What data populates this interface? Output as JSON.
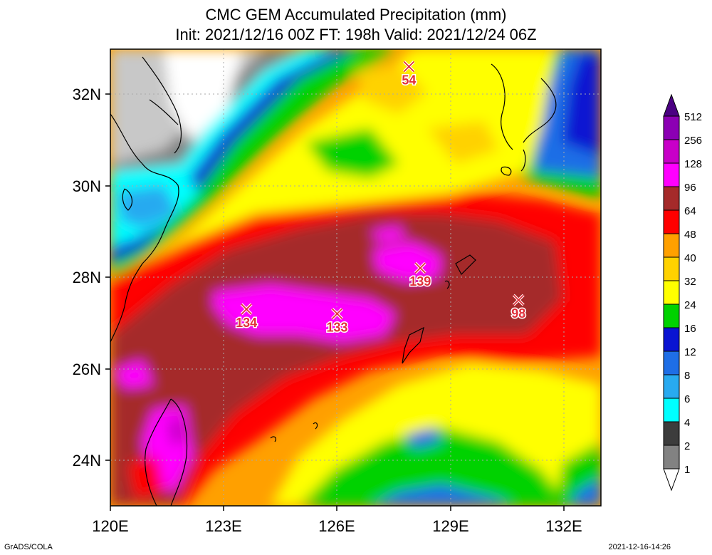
{
  "title": {
    "line1": "CMC GEM Accumulated Precipitation (mm)",
    "line2": "Init: 2021/12/16 00Z  FT: 198h  Valid: 2021/12/24 06Z"
  },
  "axes": {
    "x_ticks": [
      "120E",
      "123E",
      "126E",
      "129E",
      "132E"
    ],
    "y_ticks": [
      "32N",
      "30N",
      "28N",
      "26N",
      "24N"
    ],
    "lon_range": [
      120,
      133
    ],
    "lat_range": [
      23,
      33
    ]
  },
  "colorbar": {
    "levels": [
      "1",
      "2",
      "4",
      "6",
      "8",
      "12",
      "16",
      "24",
      "32",
      "40",
      "48",
      "64",
      "96",
      "128",
      "256",
      "512"
    ],
    "colors": [
      "#c8c8c8",
      "#828282",
      "#3c3c3c",
      "#00ffff",
      "#28aaf0",
      "#1e6ee6",
      "#0a14d2",
      "#00d200",
      "#ffff00",
      "#ffd200",
      "#ffa000",
      "#ff0000",
      "#a52a2a",
      "#ff00ff",
      "#c800c8",
      "#8c00b4",
      "#4b0082"
    ]
  },
  "maxima": [
    {
      "value": "54",
      "lon": 127.9,
      "lat": 32.6
    },
    {
      "value": "139",
      "lon": 128.2,
      "lat": 28.2
    },
    {
      "value": "134",
      "lon": 123.6,
      "lat": 27.3
    },
    {
      "value": "133",
      "lon": 126.0,
      "lat": 27.2
    },
    {
      "value": "98",
      "lon": 130.8,
      "lat": 27.5
    }
  ],
  "footer": {
    "left": "GrADS/COLA",
    "right": "2021-12-16-14:26"
  }
}
